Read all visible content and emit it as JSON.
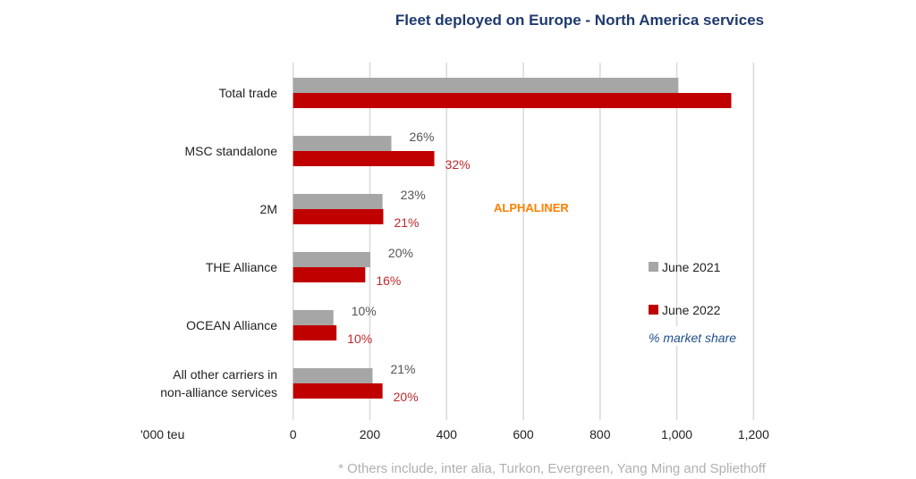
{
  "chart_data": {
    "type": "bar",
    "orientation": "horizontal",
    "title": "Fleet deployed on Europe - North America services",
    "xlabel": "'000 teu",
    "xlim": [
      0,
      1200
    ],
    "xticks": [
      "0",
      "200",
      "400",
      "600",
      "800",
      "1,000",
      "1,200"
    ],
    "xtick_values": [
      0,
      200,
      400,
      600,
      800,
      1000,
      1200
    ],
    "grid": true,
    "legend_position": "right",
    "categories": [
      "Total trade",
      "MSC standalone",
      "2M",
      "THE Alliance",
      "OCEAN Alliance",
      [
        "All other carriers in",
        "non-alliance services"
      ]
    ],
    "series": [
      {
        "name": "June 2021",
        "color": "#a6a6a6",
        "values": [
          1004,
          256,
          233,
          201,
          105,
          207
        ],
        "labels": [
          "",
          "26%",
          "23%",
          "20%",
          "10%",
          "21%"
        ]
      },
      {
        "name": "June 2022",
        "color": "#c00000",
        "values": [
          1142,
          368,
          235,
          188,
          113,
          233
        ],
        "labels": [
          "",
          "32%",
          "21%",
          "16%",
          "10%",
          "20%"
        ]
      }
    ],
    "legend_note": "% market share",
    "watermark": "ALPHALINER",
    "footnote": "* Others include, inter alia, Turkon, Evergreen, Yang Ming and Spliethoff"
  }
}
